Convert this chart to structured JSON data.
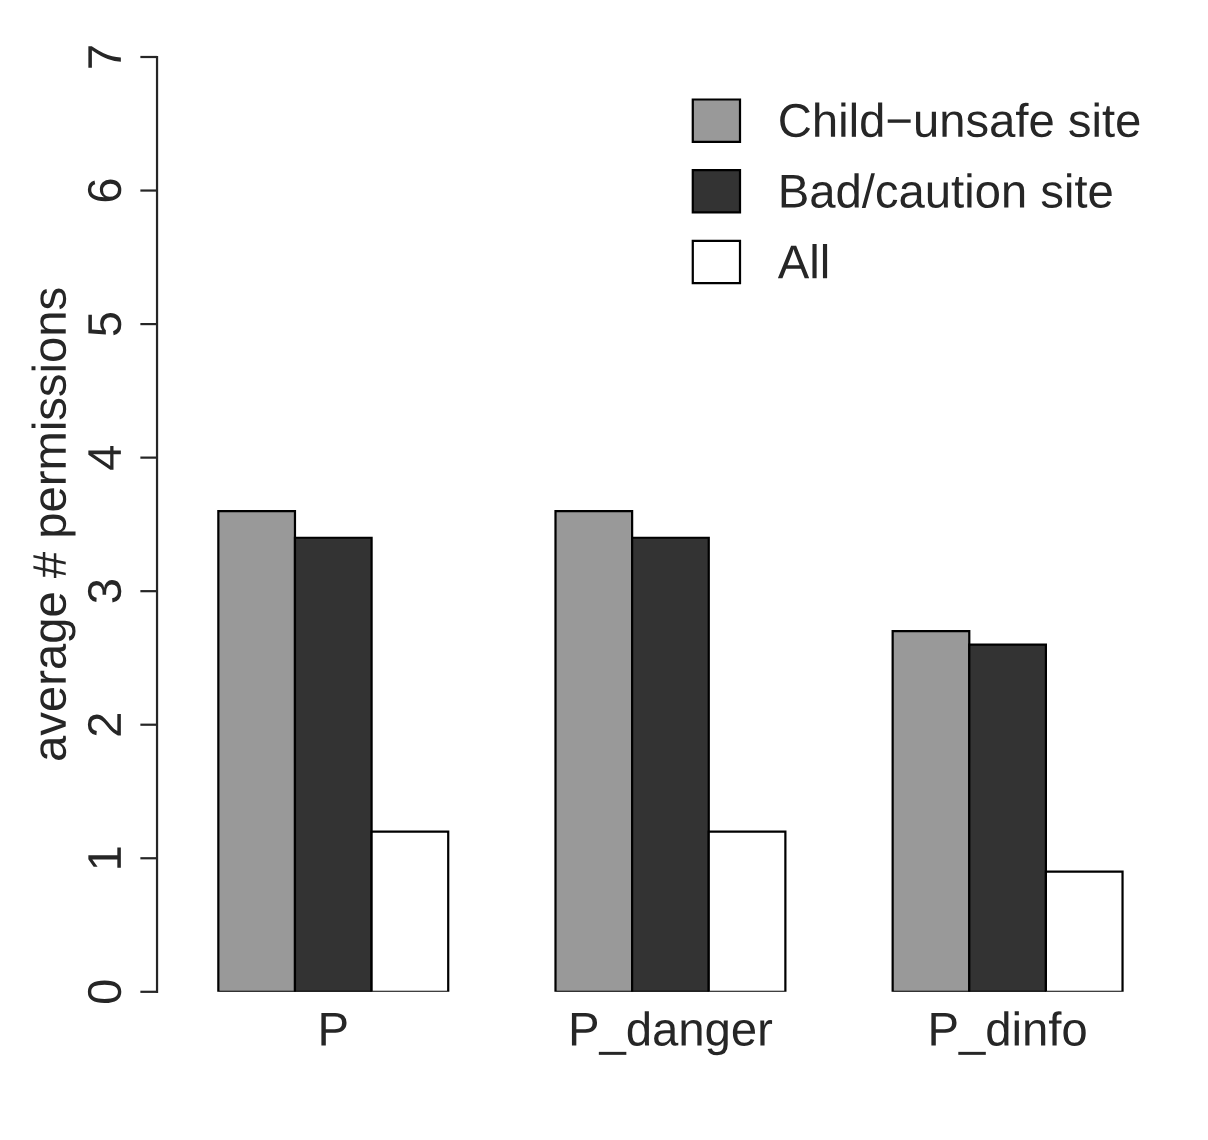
{
  "chart_data": {
    "type": "bar",
    "ylabel": "average # permissions",
    "categories": [
      "P",
      "P_danger",
      "P_dinfo"
    ],
    "series": [
      {
        "name": "Child−unsafe site",
        "color": "#999999",
        "values": [
          3.6,
          3.6,
          2.7
        ]
      },
      {
        "name": "Bad/caution site",
        "color": "#333333",
        "values": [
          3.4,
          3.4,
          2.6
        ]
      },
      {
        "name": "All",
        "color": "#ffffff",
        "values": [
          1.2,
          1.2,
          0.9
        ]
      }
    ],
    "ylim": [
      0,
      7
    ],
    "yticks": [
      0,
      1,
      2,
      3,
      4,
      5,
      6,
      7
    ],
    "grid": false,
    "legend": "top right"
  }
}
